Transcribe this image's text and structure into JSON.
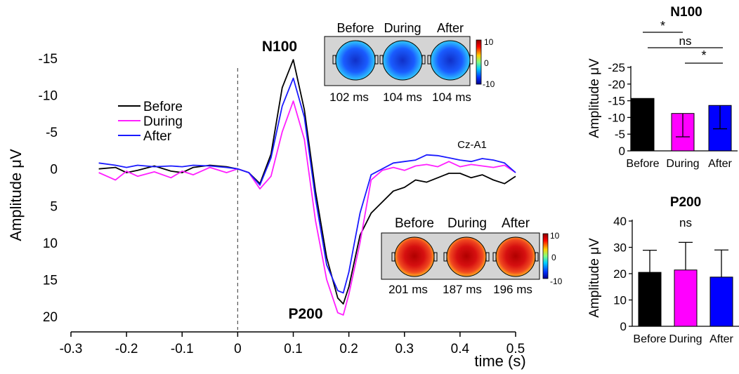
{
  "colors": {
    "before": "#000000",
    "during": "#ff1fff",
    "after": "#1a1aff",
    "axis": "#000000",
    "inset_bg": "#d4d4d4"
  },
  "main": {
    "channel_label": "Cz-A1",
    "peak_n100": "N100",
    "peak_p200": "P200",
    "legend": [
      "Before",
      "During",
      "After"
    ],
    "topo_n100": {
      "headers": [
        "Before",
        "During",
        "After"
      ],
      "latencies": [
        "102 ms",
        "104 ms",
        "104 ms"
      ],
      "colorbar": [
        "10",
        "0",
        "-10"
      ]
    },
    "topo_p200": {
      "headers": [
        "Before",
        "During",
        "After"
      ],
      "latencies": [
        "201 ms",
        "187 ms",
        "196 ms"
      ],
      "colorbar": [
        "10",
        "0",
        "-10"
      ]
    }
  },
  "chart_data": [
    {
      "type": "line",
      "title": "",
      "xlabel": "time (s)",
      "ylabel": "Amplitude μV",
      "xlim": [
        -0.3,
        0.5
      ],
      "ylim": [
        20,
        -17
      ],
      "y_inverted": true,
      "x_ticks": [
        "-0.3",
        "-0.2",
        "-0.1",
        "0",
        "0.1",
        "0.2",
        "0.3",
        "0.4",
        "0.5"
      ],
      "y_ticks": [
        "-15",
        "-10",
        "-5",
        "0",
        "5",
        "10",
        "15",
        "20"
      ],
      "vertical_marker_x": 0,
      "series": [
        {
          "name": "Before",
          "color": "#000000",
          "x": [
            -0.25,
            -0.22,
            -0.2,
            -0.18,
            -0.15,
            -0.12,
            -0.1,
            -0.08,
            -0.05,
            -0.02,
            0,
            0.02,
            0.04,
            0.06,
            0.08,
            0.1,
            0.12,
            0.14,
            0.16,
            0.18,
            0.19,
            0.2,
            0.22,
            0.24,
            0.26,
            0.28,
            0.3,
            0.32,
            0.34,
            0.36,
            0.38,
            0.4,
            0.42,
            0.44,
            0.46,
            0.48,
            0.5
          ],
          "y": [
            0,
            -0.2,
            0.5,
            0.2,
            -0.4,
            0.3,
            0.5,
            -0.2,
            -0.5,
            -0.3,
            0,
            0.5,
            2,
            -2,
            -11,
            -14.8,
            -8,
            3,
            12,
            17.5,
            18.3,
            16,
            9,
            6,
            4.5,
            3,
            2.5,
            1.5,
            1.8,
            1.2,
            0.6,
            0.6,
            1.2,
            0.8,
            1.5,
            2,
            1
          ]
        },
        {
          "name": "During",
          "color": "#ff1fff",
          "x": [
            -0.25,
            -0.22,
            -0.2,
            -0.18,
            -0.15,
            -0.12,
            -0.1,
            -0.08,
            -0.05,
            -0.02,
            0,
            0.02,
            0.04,
            0.06,
            0.08,
            0.1,
            0.12,
            0.14,
            0.16,
            0.18,
            0.19,
            0.2,
            0.22,
            0.24,
            0.26,
            0.28,
            0.3,
            0.32,
            0.34,
            0.36,
            0.38,
            0.4,
            0.42,
            0.44,
            0.46,
            0.48,
            0.5
          ],
          "y": [
            0.5,
            1.5,
            0.3,
            1,
            0.4,
            1.2,
            0.3,
            0.8,
            -0.2,
            0.5,
            0,
            0.5,
            2.7,
            1,
            -5,
            -9.2,
            -4,
            7,
            15,
            19.5,
            19.8,
            17,
            10,
            1.5,
            0.2,
            -0.2,
            0.2,
            -0.4,
            -0.6,
            -0.3,
            -1,
            -0.3,
            -0.6,
            -0.4,
            -0.2,
            -0.5,
            0.5
          ]
        },
        {
          "name": "After",
          "color": "#1a1aff",
          "x": [
            -0.25,
            -0.22,
            -0.2,
            -0.18,
            -0.15,
            -0.12,
            -0.1,
            -0.08,
            -0.05,
            -0.02,
            0,
            0.02,
            0.04,
            0.06,
            0.08,
            0.1,
            0.12,
            0.14,
            0.16,
            0.18,
            0.19,
            0.2,
            0.22,
            0.24,
            0.26,
            0.28,
            0.3,
            0.32,
            0.34,
            0.36,
            0.38,
            0.4,
            0.42,
            0.44,
            0.46,
            0.48,
            0.5
          ],
          "y": [
            -0.8,
            -0.5,
            -0.2,
            -0.5,
            -0.3,
            -0.4,
            -0.3,
            -0.5,
            -0.4,
            -0.2,
            0,
            0.5,
            2.2,
            -1.5,
            -8.5,
            -12.3,
            -7,
            4,
            13,
            16.5,
            16.8,
            14,
            6,
            0.8,
            0,
            -0.8,
            -1,
            -1.2,
            -1.9,
            -1.8,
            -1.5,
            -1.2,
            -1,
            -1.4,
            -1.2,
            -0.8,
            0.5
          ]
        }
      ]
    },
    {
      "type": "bar",
      "title": "N100",
      "xlabel": "",
      "ylabel": "Amplitude μV",
      "categories": [
        "Before",
        "During",
        "After"
      ],
      "values": [
        -15.7,
        -11.2,
        -13.6
      ],
      "errors": [
        7.8,
        7.0,
        7.0
      ],
      "colors": [
        "#000000",
        "#ff00ff",
        "#0000ff"
      ],
      "ylim": [
        0,
        -25
      ],
      "y_ticks": [
        "-25",
        "-20",
        "-15",
        "-10",
        "-5",
        "0"
      ],
      "significance": [
        {
          "from": 0,
          "to": 1,
          "label": "*"
        },
        {
          "from": 0,
          "to": 2,
          "label": "ns"
        },
        {
          "from": 1,
          "to": 2,
          "label": "*"
        }
      ]
    },
    {
      "type": "bar",
      "title": "P200",
      "xlabel": "",
      "ylabel": "Amplitude μV",
      "categories": [
        "Before",
        "During",
        "After"
      ],
      "values": [
        20.5,
        21.4,
        18.7
      ],
      "errors": [
        8.4,
        10.5,
        10.3
      ],
      "colors": [
        "#000000",
        "#ff00ff",
        "#0000ff"
      ],
      "ylim": [
        0,
        40
      ],
      "y_ticks": [
        "0",
        "10",
        "20",
        "30",
        "40"
      ],
      "significance": [
        {
          "label": "ns"
        }
      ]
    }
  ]
}
